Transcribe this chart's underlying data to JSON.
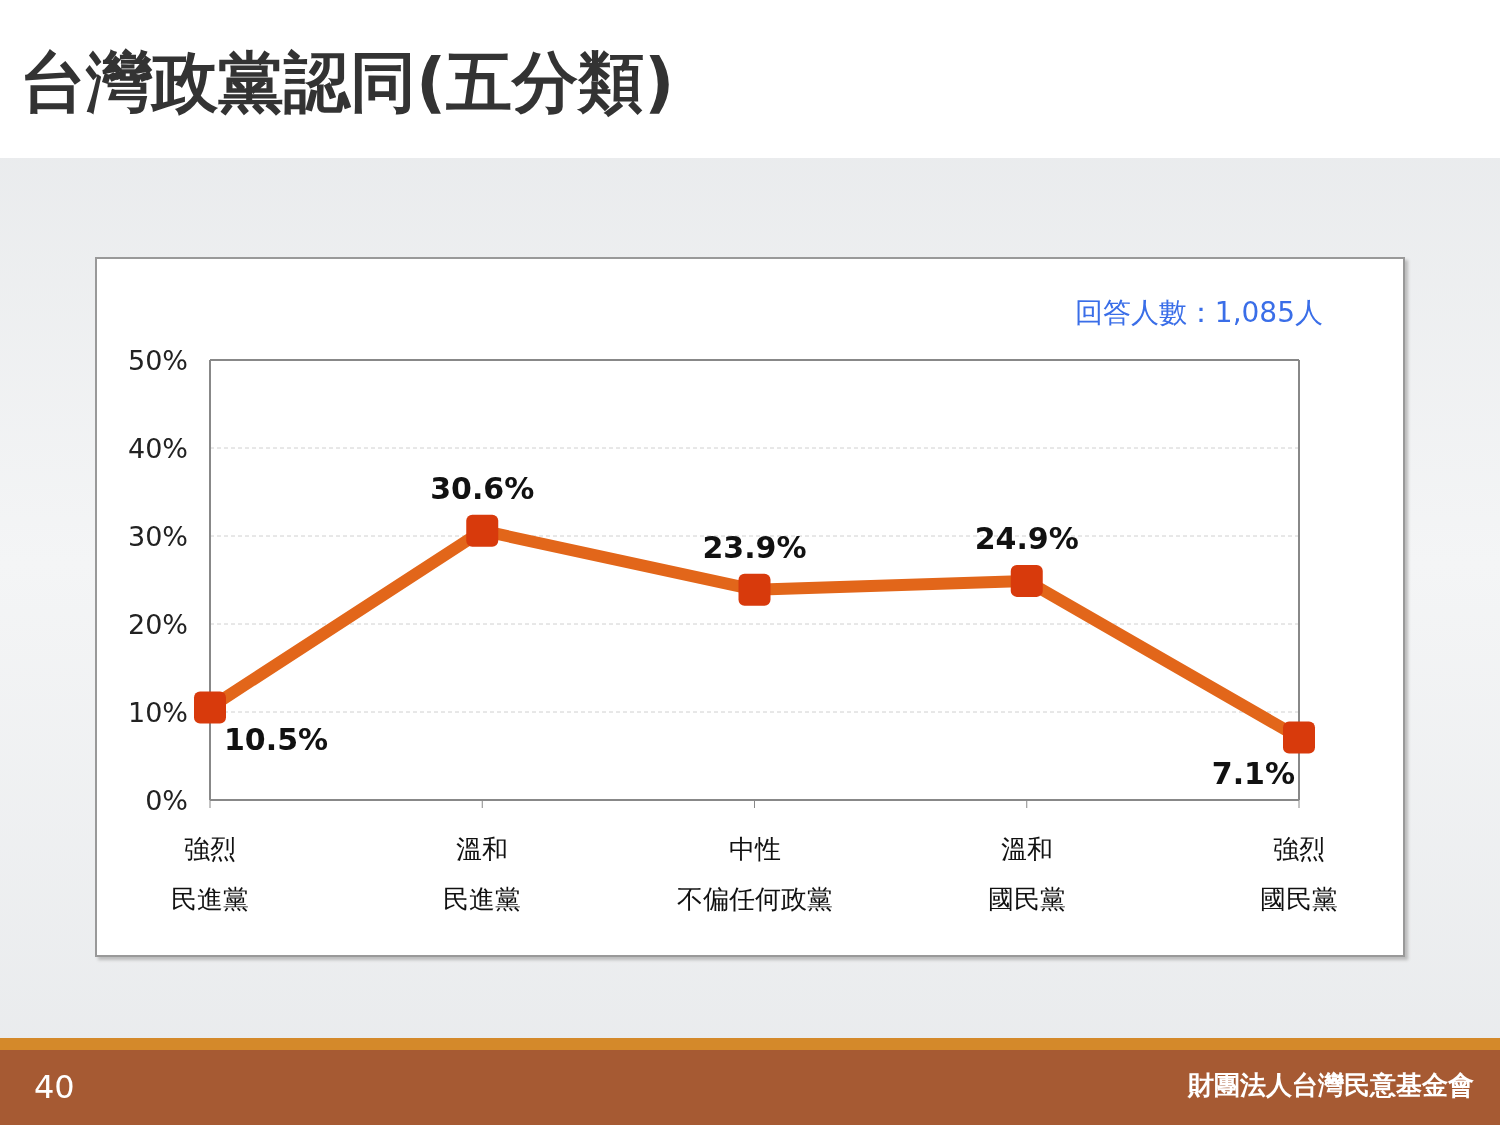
{
  "chart_data": {
    "type": "line",
    "title": "台灣政黨認同(五分類)",
    "categories": [
      "強烈民進黨",
      "溫和民進黨",
      "中性不偏任何政黨",
      "溫和國民黨",
      "強烈國民黨"
    ],
    "series": [
      {
        "color": "#e2661a",
        "values": [
          10.5,
          30.6,
          23.9,
          24.9,
          7.1
        ],
        "value_labels": [
          "10.5%",
          "30.6%",
          "23.9%",
          "24.9%",
          "7.1%"
        ]
      }
    ],
    "ylim": [
      0,
      50
    ],
    "yticks": [
      {
        "value": 0,
        "label": "0%"
      },
      {
        "value": 10,
        "label": "10%"
      },
      {
        "value": 20,
        "label": "20%"
      },
      {
        "value": 30,
        "label": "30%"
      },
      {
        "value": 40,
        "label": "40%"
      },
      {
        "value": 50,
        "label": "50%"
      }
    ],
    "grid": "y",
    "marker": "square",
    "line_style": "solid",
    "annotations": [
      "回答人數：1,085人",
      "40",
      "財團法人台灣民意基金會"
    ]
  }
}
